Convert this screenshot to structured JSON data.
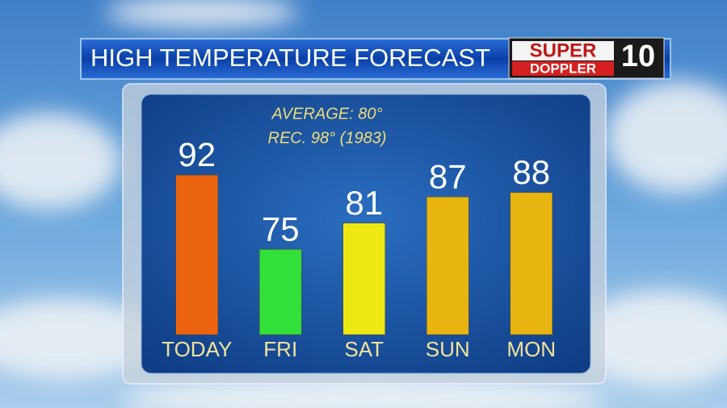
{
  "chart_data": {
    "type": "bar",
    "title": "HIGH TEMPERATURE FORECAST",
    "annotations": [
      "AVERAGE: 80°",
      "REC. 98° (1983)"
    ],
    "logo": {
      "top": "SUPER",
      "bottom": "DOPPLER",
      "number": "10"
    },
    "categories": [
      "TODAY",
      "FRI",
      "SAT",
      "SUN",
      "MON"
    ],
    "values": [
      92,
      75,
      81,
      87,
      88
    ],
    "colors": [
      "#ec6410",
      "#33e03a",
      "#eee812",
      "#e8b410",
      "#e8b410"
    ],
    "ylim": [
      55.5,
      97
    ]
  }
}
